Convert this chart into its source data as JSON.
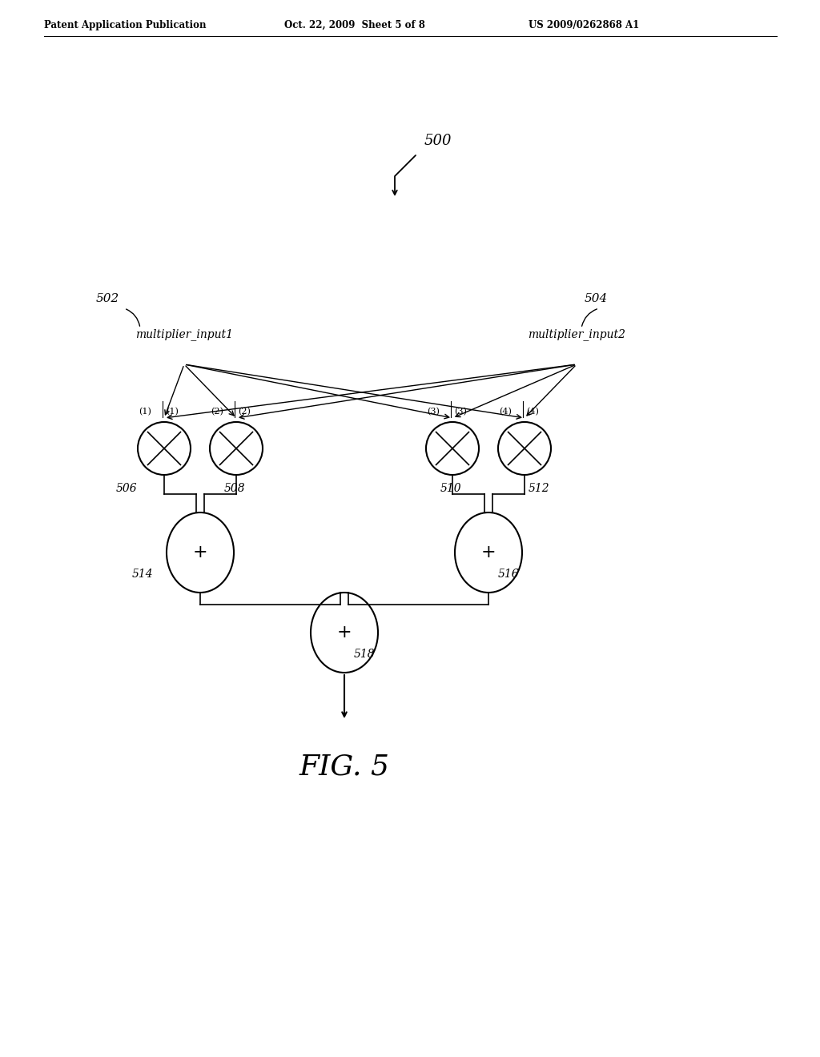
{
  "bg_color": "#ffffff",
  "header_left": "Patent Application Publication",
  "header_mid": "Oct. 22, 2009  Sheet 5 of 8",
  "header_right": "US 2009/0262868 A1",
  "fig_label": "FIG. 5",
  "ref_500": "500",
  "ref_502": "502",
  "ref_504": "504",
  "ref_506": "506",
  "ref_508": "508",
  "ref_510": "510",
  "ref_512": "512",
  "ref_514": "514",
  "ref_516": "516",
  "ref_518": "518",
  "label_input1": "multiplier_input1",
  "label_input2": "multiplier_input2",
  "plus_symbol": "+"
}
